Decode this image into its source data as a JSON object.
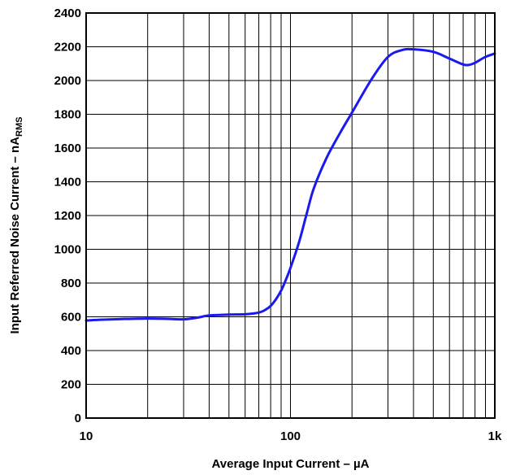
{
  "chart_data": {
    "type": "line",
    "title": "",
    "xlabel": "Average Input Current – µA",
    "ylabel_main": "Input Referred Noise Current – nA",
    "ylabel_sub": "RMS",
    "x_scale": "log",
    "xlim": [
      10,
      1000
    ],
    "ylim": [
      0,
      2400
    ],
    "x_ticks": [
      {
        "value": 10,
        "label": "10"
      },
      {
        "value": 100,
        "label": "100"
      },
      {
        "value": 1000,
        "label": "1k"
      }
    ],
    "y_ticks": [
      0,
      200,
      400,
      600,
      800,
      1000,
      1200,
      1400,
      1600,
      1800,
      2000,
      2200,
      2400
    ],
    "grid": true,
    "line_color": "#1a1aee",
    "series": [
      {
        "name": "",
        "x": [
          10,
          12,
          15,
          20,
          25,
          30,
          35,
          40,
          50,
          60,
          70,
          75,
          80,
          85,
          90,
          95,
          100,
          110,
          120,
          130,
          150,
          175,
          200,
          250,
          300,
          350,
          400,
          500,
          600,
          700,
          750,
          800,
          900,
          1000
        ],
        "y": [
          578,
          583,
          587,
          590,
          588,
          585,
          595,
          608,
          613,
          615,
          625,
          640,
          665,
          705,
          755,
          820,
          890,
          1040,
          1210,
          1360,
          1540,
          1690,
          1810,
          2010,
          2140,
          2180,
          2185,
          2170,
          2130,
          2095,
          2093,
          2105,
          2140,
          2160
        ]
      }
    ]
  }
}
